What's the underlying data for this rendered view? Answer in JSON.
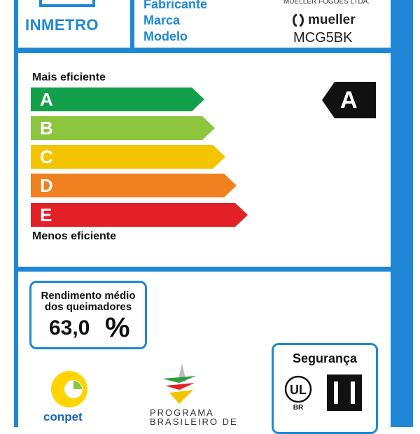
{
  "header": {
    "logo_text": "INMETRO",
    "labels": {
      "fabricante": "Fabricante",
      "marca": "Marca",
      "modelo": "Modelo"
    },
    "manufacturer": "MUELLER FOGOES LTDA.",
    "brand": "mueller",
    "model": "MCG5BK"
  },
  "scale": {
    "top_label": "Mais eficiente",
    "bottom_label": "Menos eficiente",
    "classes": [
      {
        "letter": "A",
        "color": "#13a04a"
      },
      {
        "letter": "B",
        "color": "#8cc63e"
      },
      {
        "letter": "C",
        "color": "#f2c500"
      },
      {
        "letter": "D",
        "color": "#f1801e"
      },
      {
        "letter": "E",
        "color": "#e42027"
      }
    ],
    "rating": "A"
  },
  "efficiency": {
    "title_line1": "Rendimento médio",
    "title_line2": "dos queimadores",
    "value": "63,0",
    "unit": "%"
  },
  "safety": {
    "title": "Segurança",
    "ul_text": "UL",
    "ul_sub": "BR"
  },
  "footer": {
    "conpet": "conpet",
    "programa_line1": "PROGRAMA",
    "programa_line2": "BRASILEIRO DE"
  },
  "colors": {
    "frame": "#1e88d6"
  }
}
